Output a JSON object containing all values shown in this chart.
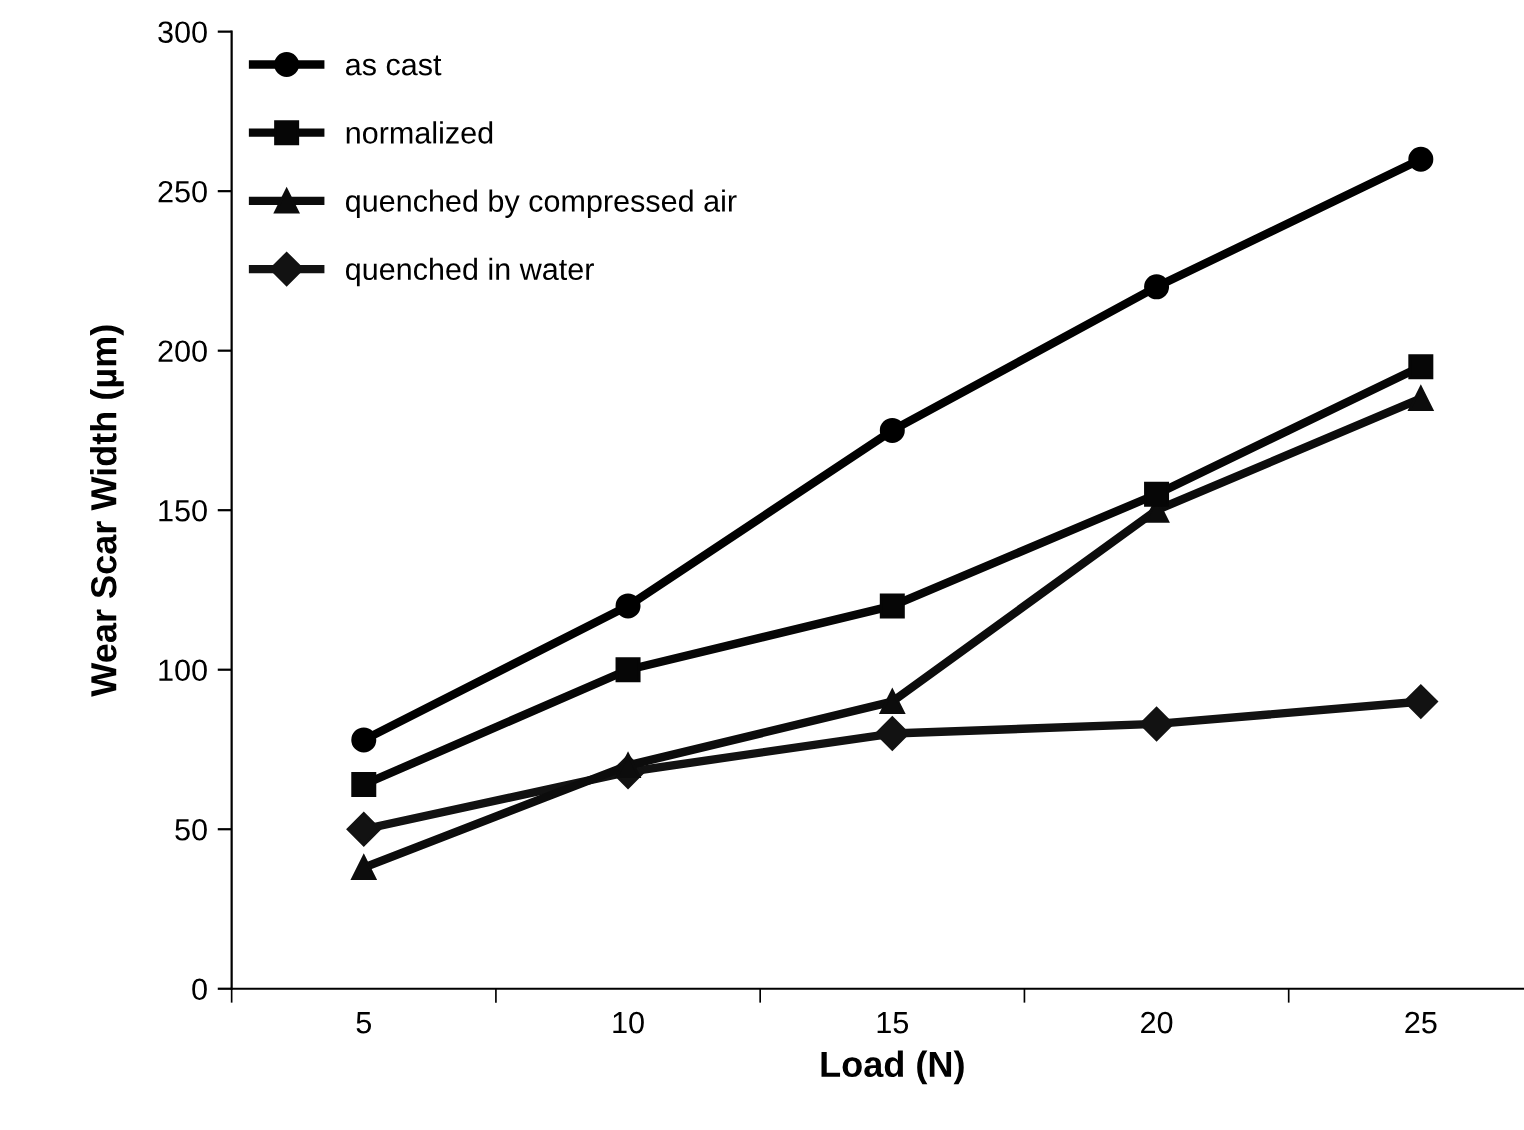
{
  "chart_data": {
    "type": "line",
    "xlabel": "Load (N)",
    "ylabel": "Wear Scar Width (µm)",
    "categories": [
      "5",
      "10",
      "15",
      "20",
      "25"
    ],
    "series": [
      {
        "name": "as cast",
        "color": "#000000",
        "marker": "circle",
        "values": [
          78,
          120,
          175,
          220,
          260
        ]
      },
      {
        "name": "normalized",
        "color": "#060606",
        "marker": "square",
        "values": [
          64,
          100,
          120,
          155,
          195
        ]
      },
      {
        "name": "quenched by compressed air",
        "color": "#0c0c0c",
        "marker": "triangle",
        "values": [
          38,
          70,
          90,
          150,
          185
        ]
      },
      {
        "name": "quenched in water",
        "color": "#121212",
        "marker": "diamond",
        "values": [
          50,
          68,
          80,
          83,
          90
        ]
      }
    ],
    "ylim": [
      0,
      300
    ],
    "yticks": [
      0,
      50,
      100,
      150,
      200,
      250,
      300
    ],
    "grid": false,
    "legend": "top left",
    "line_style": "solid"
  }
}
